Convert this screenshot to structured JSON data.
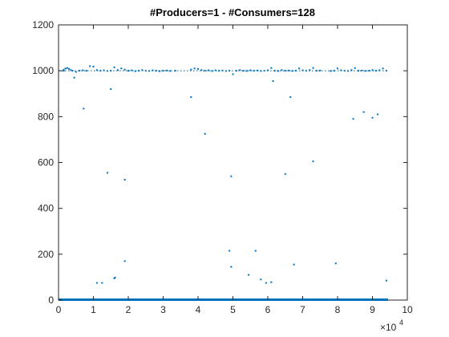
{
  "chart_data": {
    "type": "scatter",
    "title": "#Producers=1 - #Consumers=128",
    "xlabel": "",
    "ylabel": "",
    "xlim": [
      0,
      10
    ],
    "ylim": [
      0,
      1200
    ],
    "x_ticks": [
      0,
      1,
      2,
      3,
      4,
      5,
      6,
      7,
      8,
      9,
      10
    ],
    "y_ticks": [
      0,
      200,
      400,
      600,
      800,
      1000,
      1200
    ],
    "x_exponent_base": "×10",
    "x_exponent_power": "4",
    "grid": false,
    "series": [
      {
        "color": "#0072BD",
        "baseline_band": {
          "x_from": 0,
          "x_to": 9.45,
          "y": 0
        },
        "upper_band": {
          "x_from": 0,
          "x_to": 9.45,
          "y": 1000
        },
        "points": [
          [
            0.15,
            1005
          ],
          [
            0.2,
            1010
          ],
          [
            0.25,
            1012
          ],
          [
            0.3,
            1008
          ],
          [
            0.35,
            1003
          ],
          [
            0.4,
            1000
          ],
          [
            0.45,
            970
          ],
          [
            0.5,
            995
          ],
          [
            0.6,
            1000
          ],
          [
            0.7,
            1002
          ],
          [
            0.8,
            1000
          ],
          [
            0.9,
            1020
          ],
          [
            1.0,
            1018
          ],
          [
            1.1,
            1003
          ],
          [
            1.2,
            1000
          ],
          [
            1.3,
            1002
          ],
          [
            1.4,
            999
          ],
          [
            1.5,
            1000
          ],
          [
            1.6,
            1015
          ],
          [
            1.7,
            1003
          ],
          [
            1.8,
            1010
          ],
          [
            1.9,
            1005
          ],
          [
            2.0,
            1000
          ],
          [
            2.1,
            1002
          ],
          [
            2.2,
            998
          ],
          [
            2.3,
            1000
          ],
          [
            2.4,
            1003
          ],
          [
            2.5,
            1000
          ],
          [
            2.6,
            999
          ],
          [
            2.7,
            1002
          ],
          [
            2.8,
            1000
          ],
          [
            2.9,
            998
          ],
          [
            3.0,
            1000
          ],
          [
            3.1,
            1001
          ],
          [
            3.2,
            999
          ],
          [
            3.35,
            1000
          ],
          [
            3.8,
            1005
          ],
          [
            3.9,
            1010
          ],
          [
            4.0,
            1008
          ],
          [
            4.1,
            1003
          ],
          [
            4.2,
            1000
          ],
          [
            4.3,
            1002
          ],
          [
            4.4,
            999
          ],
          [
            4.5,
            1002
          ],
          [
            4.6,
            1000
          ],
          [
            4.7,
            1001
          ],
          [
            4.8,
            999
          ],
          [
            4.9,
            1000
          ],
          [
            5.0,
            985
          ],
          [
            5.1,
            1000
          ],
          [
            5.2,
            1003
          ],
          [
            5.3,
            1000
          ],
          [
            5.4,
            999
          ],
          [
            5.5,
            1002
          ],
          [
            5.6,
            1000
          ],
          [
            5.7,
            1001
          ],
          [
            5.8,
            999
          ],
          [
            5.9,
            1000
          ],
          [
            6.0,
            1002
          ],
          [
            6.1,
            1012
          ],
          [
            6.2,
            1000
          ],
          [
            6.3,
            999
          ],
          [
            6.4,
            1003
          ],
          [
            6.5,
            1000
          ],
          [
            6.6,
            1001
          ],
          [
            6.7,
            999
          ],
          [
            6.8,
            1000
          ],
          [
            6.9,
            1010
          ],
          [
            7.0,
            1002
          ],
          [
            7.1,
            1000
          ],
          [
            7.2,
            1003
          ],
          [
            7.3,
            1012
          ],
          [
            7.4,
            1000
          ],
          [
            7.5,
            1001
          ],
          [
            7.8,
            999
          ],
          [
            7.9,
            1000
          ],
          [
            8.0,
            1010
          ],
          [
            8.1,
            1002
          ],
          [
            8.2,
            1000
          ],
          [
            8.3,
            999
          ],
          [
            8.4,
            1003
          ],
          [
            8.5,
            1012
          ],
          [
            8.6,
            1000
          ],
          [
            8.7,
            1001
          ],
          [
            8.8,
            999
          ],
          [
            8.9,
            1000
          ],
          [
            9.0,
            1003
          ],
          [
            9.1,
            1000
          ],
          [
            9.2,
            1002
          ],
          [
            9.3,
            1010
          ],
          [
            9.4,
            1000
          ],
          [
            0.72,
            835
          ],
          [
            0.15,
            1000
          ],
          [
            1.5,
            920
          ],
          [
            3.8,
            885
          ],
          [
            4.2,
            725
          ],
          [
            6.65,
            885
          ],
          [
            6.15,
            955
          ],
          [
            8.45,
            790
          ],
          [
            8.75,
            820
          ],
          [
            9.0,
            795
          ],
          [
            9.15,
            810
          ],
          [
            1.4,
            555
          ],
          [
            1.9,
            525
          ],
          [
            4.95,
            540
          ],
          [
            6.5,
            550
          ],
          [
            7.3,
            605
          ],
          [
            4.9,
            215
          ],
          [
            5.65,
            215
          ],
          [
            4.95,
            145
          ],
          [
            6.75,
            155
          ],
          [
            7.95,
            160
          ],
          [
            1.9,
            170
          ],
          [
            5.45,
            110
          ],
          [
            1.6,
            95
          ],
          [
            1.62,
            98
          ],
          [
            1.1,
            75
          ],
          [
            1.25,
            75
          ],
          [
            5.8,
            90
          ],
          [
            5.95,
            75
          ],
          [
            6.1,
            78
          ],
          [
            9.4,
            85
          ]
        ]
      }
    ]
  }
}
